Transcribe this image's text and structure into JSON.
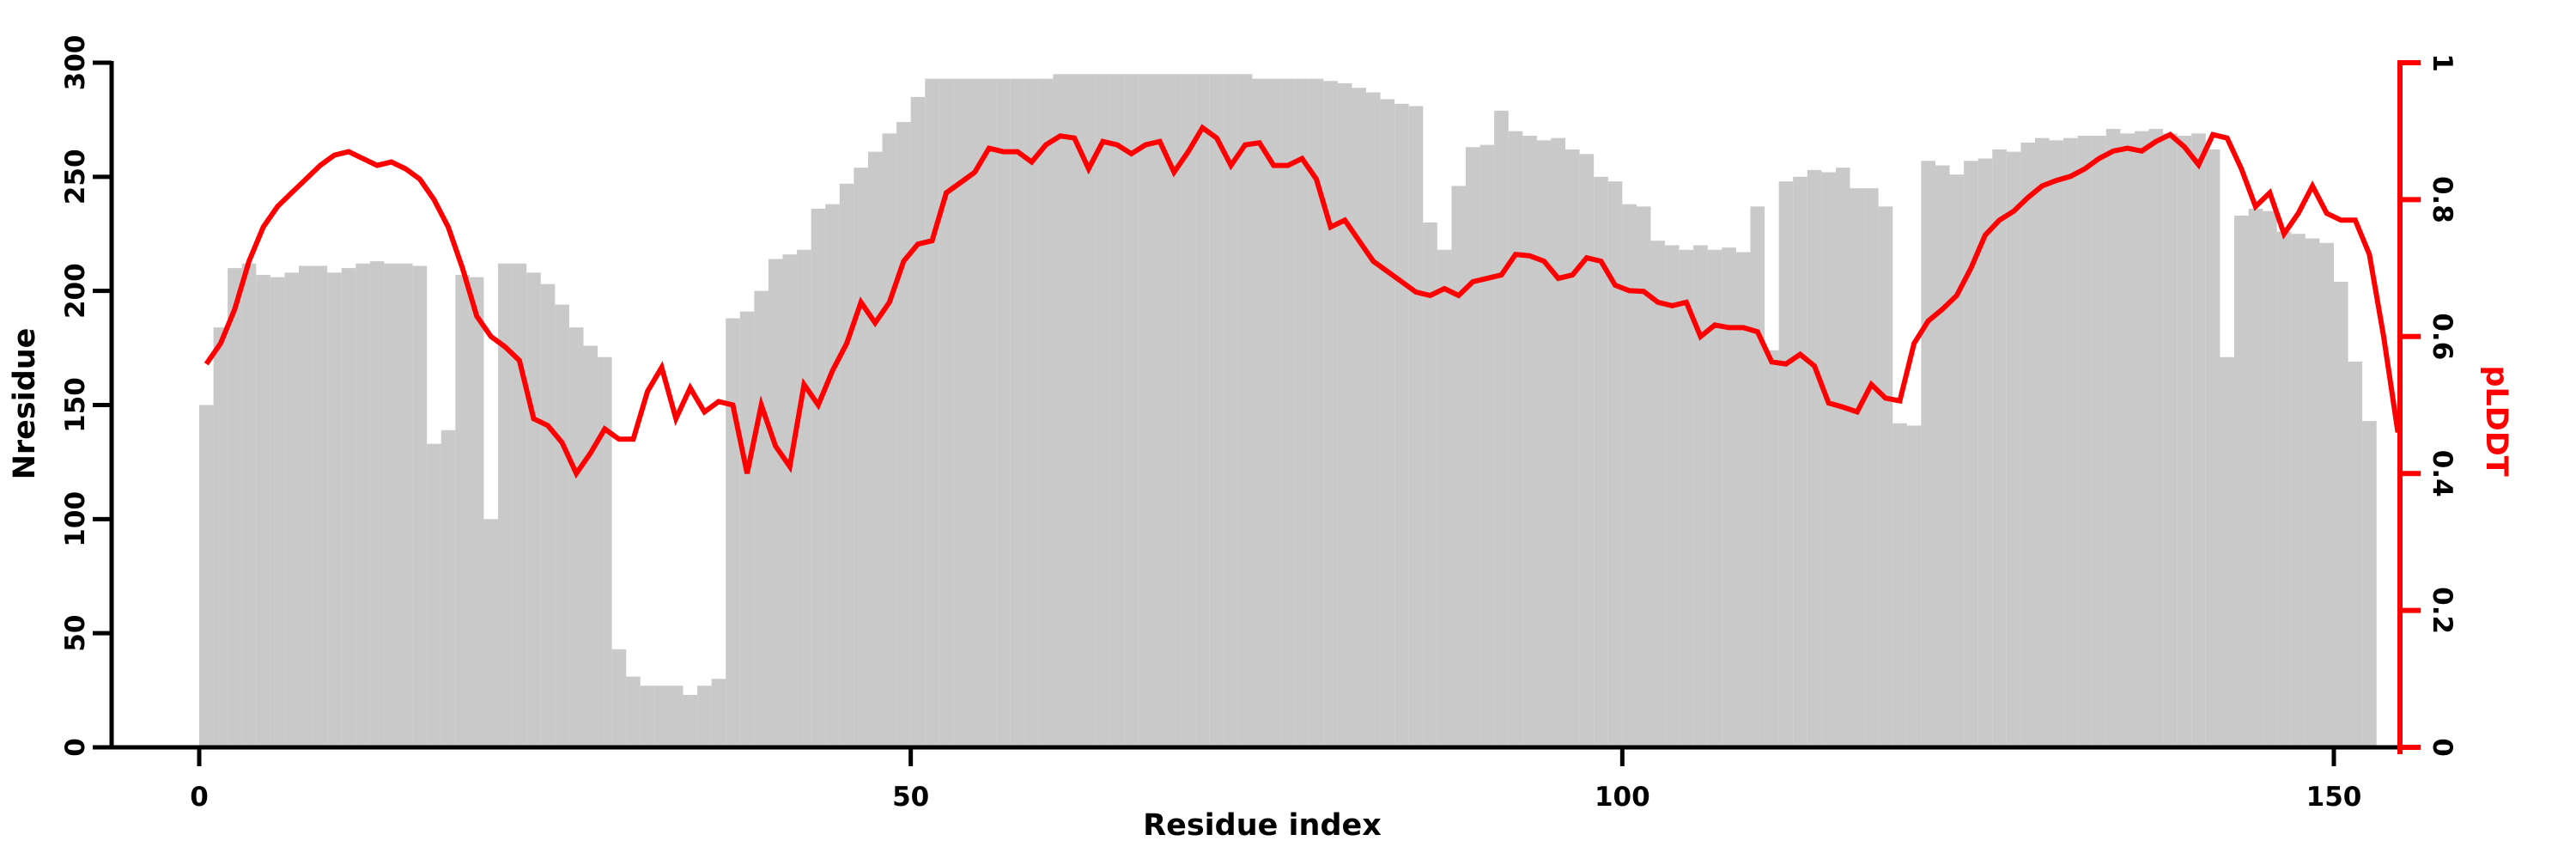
{
  "figure": {
    "background": "#ffffff",
    "bar_color": "#c9c9c9",
    "line_color": "#ff0000",
    "axis_color": "#000000",
    "right_axis_color": "#ff0000"
  },
  "left_axis": {
    "label": "Nresidue",
    "tick_labels": [
      "0",
      "50",
      "100",
      "150",
      "200",
      "250",
      "300"
    ],
    "tick_values": [
      0,
      50,
      100,
      150,
      200,
      250,
      300
    ],
    "range": [
      0,
      300
    ]
  },
  "x_axis": {
    "label": "Residue index",
    "tick_labels": [
      "0",
      "50",
      "100",
      "150"
    ],
    "tick_values": [
      0,
      50,
      100,
      150
    ]
  },
  "right_axis": {
    "label": "pLDDT",
    "tick_labels": [
      "0",
      "0.2",
      "0.4",
      "0.6",
      "0.8",
      "1"
    ],
    "tick_values": [
      0,
      0.2,
      0.4,
      0.6,
      0.8,
      1
    ],
    "range": [
      0,
      1
    ]
  },
  "chart_data": {
    "type": [
      "bar",
      "line"
    ],
    "title": "",
    "xlabel": "Residue index",
    "ylabel_left": "Nresidue",
    "ylabel_right": "pLDDT",
    "x_is_residue_index": true,
    "x_start": 0,
    "xlim": [
      -6,
      160
    ],
    "ylim_left": [
      0,
      300
    ],
    "ylim_right": [
      0,
      1
    ],
    "grid": false,
    "legend": "none",
    "series": [
      {
        "name": "Nresidue",
        "type": "bar",
        "axis": "left",
        "color": "#c9c9c9",
        "values": [
          150,
          184,
          210,
          212,
          207,
          206,
          208,
          211,
          211,
          208,
          210,
          212,
          213,
          212,
          212,
          211,
          133,
          139,
          207,
          206,
          100,
          212,
          212,
          208,
          203,
          194,
          184,
          176,
          171,
          43,
          31,
          27,
          27,
          27,
          23,
          27,
          30,
          188,
          191,
          200,
          214,
          216,
          218,
          236,
          238,
          247,
          254,
          261,
          269,
          274,
          285,
          293,
          293,
          293,
          293,
          293,
          293,
          293,
          293,
          293,
          295,
          295,
          295,
          295,
          295,
          295,
          295,
          295,
          295,
          295,
          295,
          295,
          295,
          295,
          293,
          293,
          293,
          293,
          293,
          292,
          291,
          289,
          287,
          284,
          282,
          281,
          230,
          218,
          246,
          263,
          264,
          279,
          270,
          268,
          266,
          267,
          262,
          260,
          250,
          248,
          238,
          237,
          222,
          220,
          218,
          220,
          218,
          219,
          217,
          237,
          174,
          248,
          250,
          253,
          252,
          254,
          245,
          245,
          237,
          142,
          141,
          257,
          255,
          251,
          257,
          258,
          262,
          261,
          265,
          267,
          266,
          267,
          268,
          268,
          271,
          269,
          270,
          271,
          269,
          268,
          269,
          262,
          171,
          233,
          236,
          235,
          226,
          225,
          223,
          221,
          204,
          169,
          143
        ]
      },
      {
        "name": "pLDDT",
        "type": "line",
        "axis": "right",
        "color": "#ff0000",
        "values": [
          0.56,
          0.59,
          0.64,
          0.71,
          0.76,
          0.79,
          0.81,
          0.83,
          0.85,
          0.865,
          0.87,
          0.86,
          0.85,
          0.855,
          0.845,
          0.83,
          0.8,
          0.76,
          0.7,
          0.63,
          0.6,
          0.585,
          0.565,
          0.48,
          0.47,
          0.445,
          0.4,
          0.43,
          0.465,
          0.45,
          0.45,
          0.52,
          0.555,
          0.48,
          0.525,
          0.49,
          0.505,
          0.5,
          0.4,
          0.5,
          0.44,
          0.41,
          0.53,
          0.5,
          0.55,
          0.59,
          0.65,
          0.62,
          0.65,
          0.71,
          0.735,
          0.74,
          0.81,
          0.825,
          0.84,
          0.875,
          0.87,
          0.87,
          0.855,
          0.88,
          0.893,
          0.89,
          0.845,
          0.885,
          0.88,
          0.867,
          0.88,
          0.885,
          0.84,
          0.87,
          0.905,
          0.89,
          0.85,
          0.88,
          0.883,
          0.85,
          0.85,
          0.86,
          0.83,
          0.76,
          0.77,
          0.74,
          0.71,
          0.695,
          0.68,
          0.665,
          0.66,
          0.67,
          0.66,
          0.68,
          0.685,
          0.69,
          0.72,
          0.718,
          0.71,
          0.685,
          0.69,
          0.715,
          0.71,
          0.675,
          0.667,
          0.666,
          0.65,
          0.645,
          0.65,
          0.6,
          0.617,
          0.613,
          0.613,
          0.607,
          0.563,
          0.56,
          0.574,
          0.557,
          0.503,
          0.497,
          0.49,
          0.53,
          0.51,
          0.506,
          0.59,
          0.623,
          0.64,
          0.66,
          0.7,
          0.748,
          0.77,
          0.783,
          0.803,
          0.82,
          0.828,
          0.834,
          0.845,
          0.86,
          0.871,
          0.875,
          0.871,
          0.885,
          0.895,
          0.877,
          0.851,
          0.895,
          0.89,
          0.845,
          0.79,
          0.81,
          0.75,
          0.78,
          0.82,
          0.78,
          0.77,
          0.77,
          0.72,
          0.6,
          0.46
        ]
      }
    ]
  }
}
